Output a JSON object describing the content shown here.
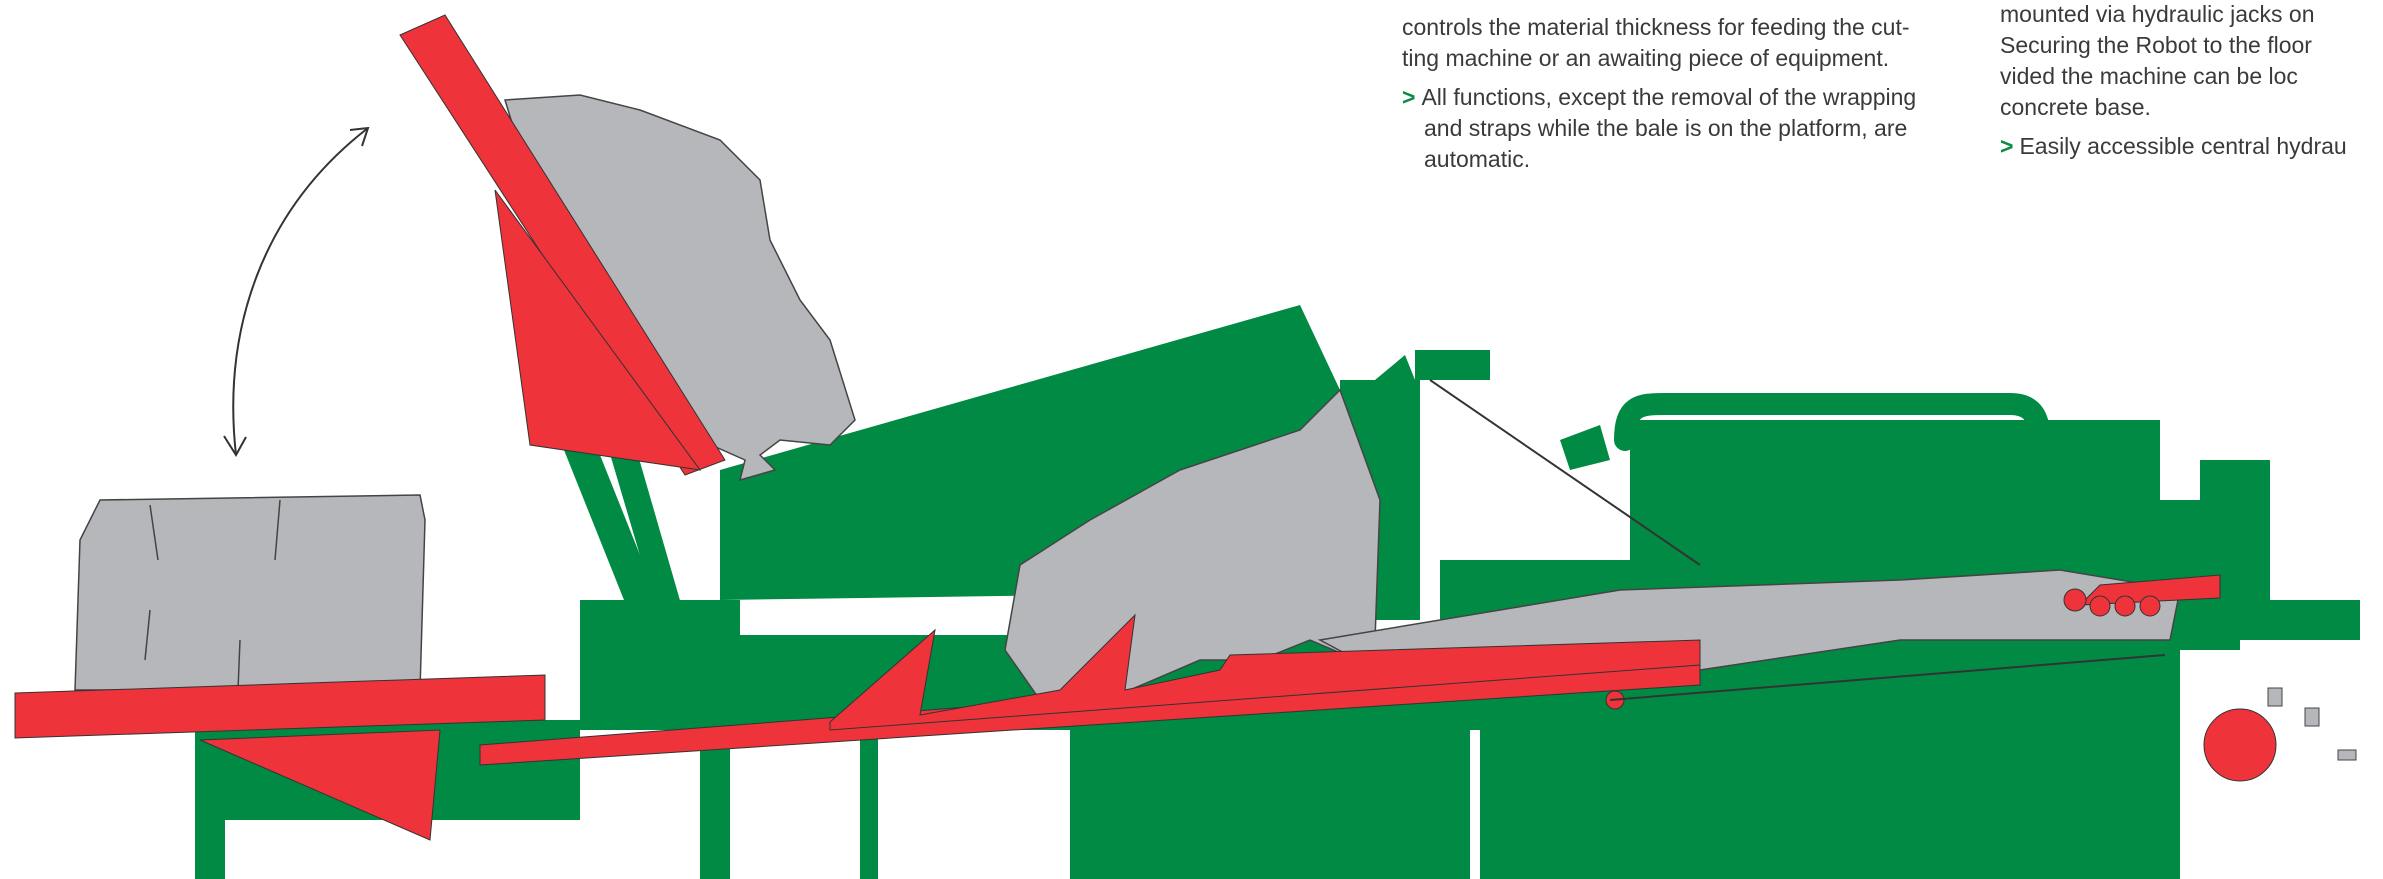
{
  "colors": {
    "green": "#008a43",
    "green_dark": "#006b33",
    "red": "#ee333b",
    "gray": "#b6b7bb",
    "text": "#3a3a3a",
    "bullet": "#0a8c45"
  },
  "bullet_symbol": ">",
  "text_columns": {
    "middle": {
      "fragment_lines": [
        "controls the material thickness for feeding the cut-",
        "ting machine or an awaiting piece of equipment."
      ],
      "bullet_lines": [
        "All functions, except the removal of the wrapping",
        "and straps while the bale is on the platform, are",
        "automatic."
      ]
    },
    "right": {
      "fragment_lines": [
        "mounted via hydraulic jacks on",
        "Securing the Robot to the floor",
        "vided the machine can be loc",
        "concrete base."
      ],
      "bullet_lines": [
        "Easily accessible central hydrau"
      ]
    }
  },
  "icons": {
    "rotation_arrow": "double-headed-curved-arrow-icon"
  }
}
